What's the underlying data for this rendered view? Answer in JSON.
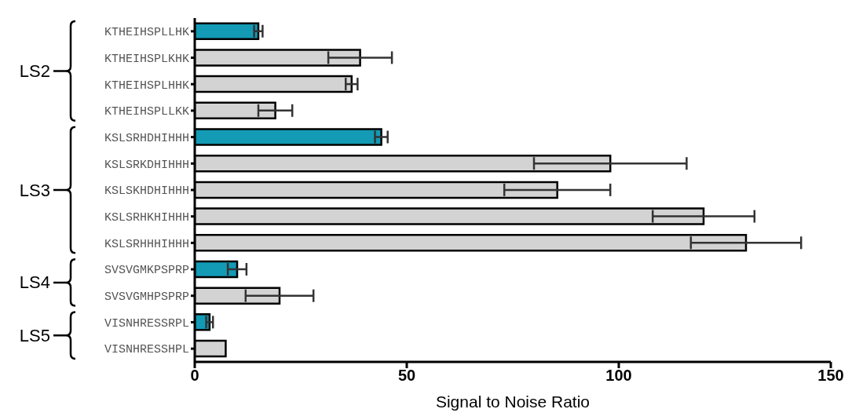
{
  "chart_data": {
    "type": "bar",
    "orientation": "horizontal",
    "xlabel": "Signal to Noise Ratio",
    "categories": [
      "KTHEIHSPLLHK",
      "KTHEIHSPLKHK",
      "KTHEIHSPLHHK",
      "KTHEIHSPLLKK",
      "KSLSRHDHIHHH",
      "KSLSRKDHIHHH",
      "KSLSKHDHIHHH",
      "KSLSRHKHIHHH",
      "KSLSRHHHIHHH",
      "SVSVGMKPSPRP",
      "SVSVGMHPSPRP",
      "VISNHRESSRPL",
      "VISNHRESSHPL"
    ],
    "values": [
      15,
      39,
      37,
      19,
      44,
      98,
      85.5,
      120,
      130,
      10,
      20,
      3.5,
      7.3
    ],
    "errors": [
      1,
      7.5,
      1.4,
      4,
      1.5,
      18,
      12.5,
      12,
      13,
      2.2,
      8,
      0.8,
      null
    ],
    "colors": [
      "#139ab5",
      "#d3d3d3",
      "#d3d3d3",
      "#d3d3d3",
      "#139ab5",
      "#d3d3d3",
      "#d3d3d3",
      "#d3d3d3",
      "#d3d3d3",
      "#139ab5",
      "#d3d3d3",
      "#139ab5",
      "#d3d3d3"
    ],
    "xlim": [
      0,
      150
    ],
    "xticks": [
      0,
      50,
      100,
      150
    ],
    "annotations": [
      "LS2",
      "LS3",
      "LS4",
      "LS5"
    ]
  }
}
